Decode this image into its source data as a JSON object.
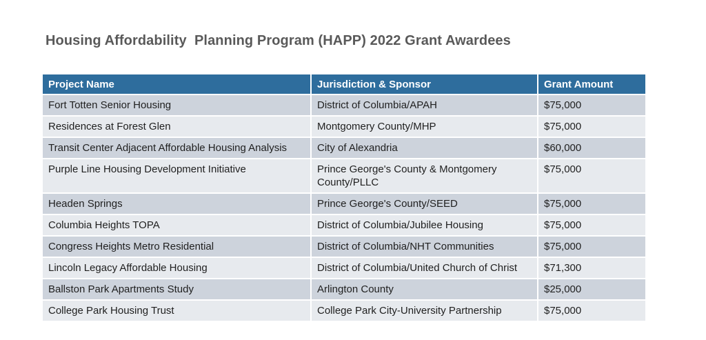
{
  "page": {
    "title": "Housing Affordability  Planning Program (HAPP) 2022 Grant Awardees"
  },
  "colors": {
    "header_bg": "#2e6d9d",
    "header_text": "#ffffff",
    "row_dark": "#cdd3dc",
    "row_light": "#e7eaee",
    "title_text": "#595959",
    "body_text": "#1f1f1f",
    "divider": "#ffffff"
  },
  "table": {
    "headers": [
      "Project Name",
      "Jurisdiction & Sponsor",
      "Grant Amount"
    ],
    "rows": [
      {
        "project": "Fort Totten Senior Housing",
        "jurisdiction": "District of Columbia/APAH",
        "amount": "$75,000"
      },
      {
        "project": "Residences at Forest Glen",
        "jurisdiction": "Montgomery County/MHP",
        "amount": "$75,000"
      },
      {
        "project": "Transit Center Adjacent Affordable Housing Analysis",
        "jurisdiction": "City of Alexandria",
        "amount": "$60,000"
      },
      {
        "project": "Purple Line Housing Development Initiative",
        "jurisdiction": "Prince George's County & Montgomery County/PLLC",
        "amount": "$75,000"
      },
      {
        "project": "Headen Springs",
        "jurisdiction": "Prince George's County/SEED",
        "amount": "$75,000"
      },
      {
        "project": "Columbia Heights TOPA",
        "jurisdiction": "District of Columbia/Jubilee Housing",
        "amount": "$75,000"
      },
      {
        "project": "Congress Heights Metro Residential",
        "jurisdiction": "District of Columbia/NHT Communities",
        "amount": "$75,000"
      },
      {
        "project": "Lincoln Legacy Affordable Housing",
        "jurisdiction": "District of Columbia/United Church of Christ",
        "amount": "$71,300"
      },
      {
        "project": "Ballston Park Apartments Study",
        "jurisdiction": "Arlington County",
        "amount": "$25,000"
      },
      {
        "project": "College Park Housing Trust",
        "jurisdiction": "College Park City-University Partnership",
        "amount": "$75,000"
      }
    ]
  }
}
